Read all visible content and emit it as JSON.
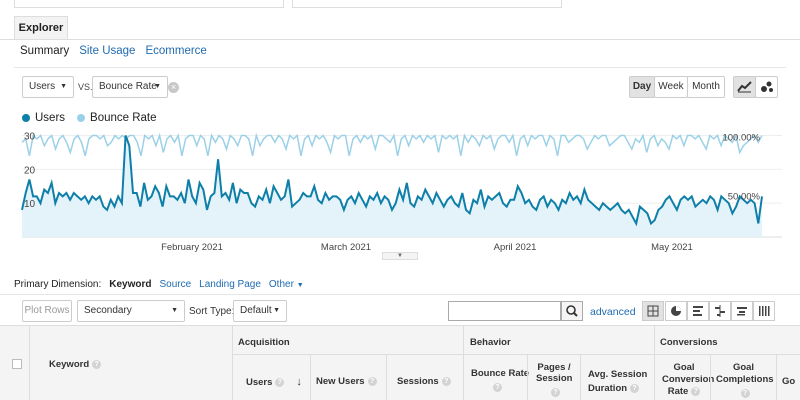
{
  "tabs": {
    "explorer": "Explorer"
  },
  "subnav": [
    "Summary",
    "Site Usage",
    "Ecommerce"
  ],
  "controls": {
    "metric1": "Users",
    "vs": "VS.",
    "metric2": "Bounce Rate",
    "day": "Day",
    "week": "Week",
    "month": "Month"
  },
  "legend": [
    {
      "label": "Users",
      "color": "#0e7fa8"
    },
    {
      "label": "Bounce Rate",
      "color": "#9bd1e8"
    }
  ],
  "chart_data": {
    "type": "line",
    "x_labels": [
      "February 2021",
      "March 2021",
      "April 2021",
      "May 2021"
    ],
    "left_axis": [
      30,
      20,
      10
    ],
    "right_axis": [
      "100.00%",
      "50.00%"
    ],
    "series": [
      {
        "name": "Users",
        "values": [
          8,
          13,
          17,
          12,
          12,
          10,
          14,
          13,
          16,
          10,
          13,
          12,
          13,
          11,
          13,
          12,
          11,
          12,
          10,
          12,
          11,
          12,
          9,
          8,
          11,
          9,
          12,
          10,
          30,
          27,
          13,
          13,
          9,
          16,
          11,
          12,
          15,
          13,
          9,
          15,
          12,
          12,
          11,
          13,
          10,
          17,
          12,
          10,
          16,
          14,
          8,
          12,
          13,
          23,
          12,
          13,
          11,
          16,
          10,
          14,
          13,
          13,
          10,
          9,
          12,
          11,
          14,
          10,
          15,
          13,
          11,
          12,
          17,
          9,
          10,
          11,
          13,
          12,
          12,
          15,
          11,
          10,
          13,
          11,
          12,
          12,
          11,
          8,
          11,
          12,
          10,
          13,
          11,
          9,
          12,
          11,
          13,
          10,
          12,
          11,
          8,
          10,
          14,
          11,
          16,
          10,
          9,
          12,
          11,
          14,
          12,
          10,
          13,
          11,
          9,
          11,
          12,
          10,
          9,
          13,
          8,
          7,
          11,
          10,
          14,
          9,
          12,
          11,
          12,
          13,
          10,
          9,
          11,
          11,
          15,
          13,
          10,
          11,
          9,
          8,
          11,
          12,
          9,
          11,
          10,
          8,
          11,
          10,
          13,
          11,
          12,
          10,
          14,
          11,
          10,
          9,
          8,
          10,
          9,
          8,
          9,
          10,
          8,
          7,
          8,
          6,
          4,
          9,
          8,
          7,
          4,
          5,
          8,
          9,
          11,
          12,
          10,
          8,
          11,
          12,
          11,
          12,
          9,
          10,
          11,
          10,
          12,
          11,
          8,
          12,
          11,
          10,
          7,
          9,
          12,
          11,
          10,
          11,
          10,
          4,
          12
        ],
        "color": "#0e7fa8"
      },
      {
        "name": "Bounce Rate",
        "values": [
          28,
          29,
          24,
          30,
          29,
          30,
          27,
          29,
          30,
          26,
          29,
          30,
          28,
          25,
          29,
          30,
          28,
          24,
          29,
          30,
          30,
          29,
          30,
          27,
          28,
          30,
          29,
          30,
          29,
          30,
          30,
          28,
          24,
          30,
          29,
          30,
          27,
          30,
          25,
          29,
          30,
          28,
          30,
          24,
          29,
          30,
          30,
          27,
          30,
          29,
          24,
          30,
          28,
          30,
          29,
          26,
          30,
          29,
          27,
          30,
          30,
          29,
          24,
          30,
          27,
          29,
          30,
          30,
          28,
          30,
          29,
          26,
          30,
          29,
          30,
          24,
          29,
          30,
          27,
          30,
          29,
          30,
          28,
          25,
          30,
          29,
          30,
          30,
          24,
          29,
          30,
          28,
          30,
          29,
          30,
          26,
          30,
          30,
          29,
          28,
          30,
          24,
          29,
          30,
          27,
          30,
          29,
          30,
          28,
          30,
          29,
          30,
          25,
          30,
          29,
          30,
          29,
          30,
          24,
          30,
          28,
          30,
          29,
          27,
          30,
          29,
          30,
          26,
          29,
          30,
          30,
          28,
          30,
          24,
          29,
          30,
          27,
          30,
          29,
          30,
          30,
          27,
          30,
          29,
          24,
          30,
          30,
          28,
          29,
          30,
          30,
          29,
          26,
          28,
          30,
          29,
          30,
          30,
          27,
          28,
          29,
          30,
          30,
          28,
          26,
          29,
          28,
          30,
          25,
          29,
          30,
          27,
          29,
          28,
          26,
          30,
          29,
          30,
          27,
          30,
          30,
          29,
          30,
          28,
          26,
          30,
          29,
          30,
          27,
          30,
          29,
          28,
          30,
          25,
          27,
          28,
          29,
          30,
          28,
          30
        ],
        "color": "#9bd1e8"
      }
    ]
  },
  "dimension": {
    "label": "Primary Dimension:",
    "options": [
      "Keyword",
      "Source",
      "Landing Page",
      "Other"
    ]
  },
  "toolbar2": {
    "plot_rows": "Plot Rows",
    "secondary": "Secondary dimension",
    "sort_type_label": "Sort Type:",
    "sort_value": "Default",
    "advanced": "advanced"
  },
  "table": {
    "groups": [
      "Acquisition",
      "Behavior",
      "Conversions"
    ],
    "keyword": "Keyword",
    "columns": [
      "Users",
      "New Users",
      "Sessions",
      "Bounce Rate",
      "Pages / Session",
      "Avg. Session Duration",
      "Goal Conversion Rate",
      "Goal Completions",
      "Go"
    ]
  }
}
